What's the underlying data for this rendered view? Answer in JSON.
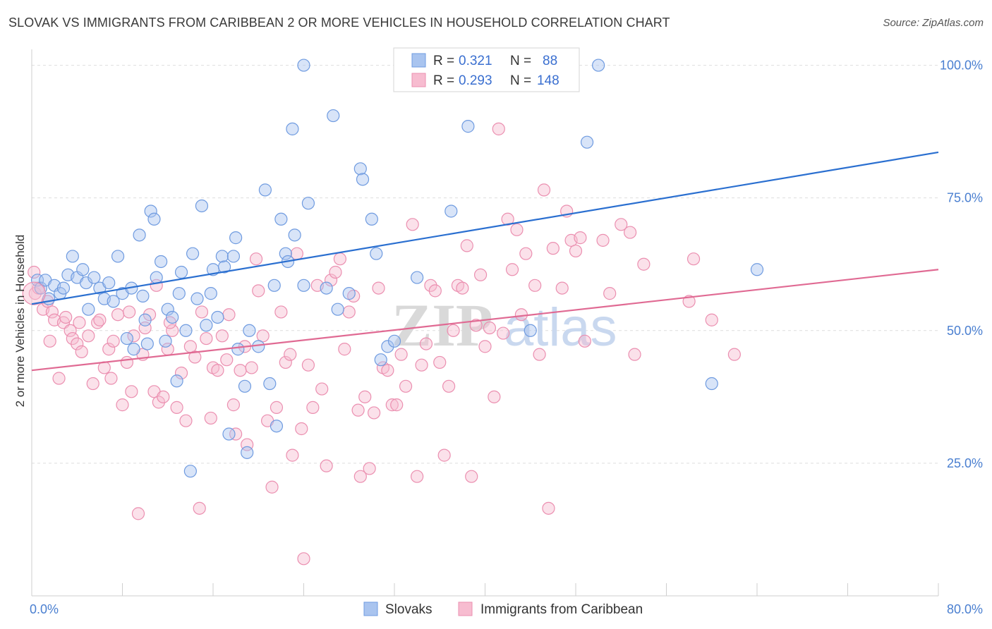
{
  "title": "SLOVAK VS IMMIGRANTS FROM CARIBBEAN 2 OR MORE VEHICLES IN HOUSEHOLD CORRELATION CHART",
  "source": "Source: ZipAtlas.com",
  "watermark": {
    "zip": "ZIP",
    "atlas": "atlas"
  },
  "chart_data": {
    "type": "scatter",
    "xlabel": "",
    "ylabel": "2 or more Vehicles in Household",
    "xlim": [
      0,
      80
    ],
    "ylim": [
      0,
      103
    ],
    "x_tick_labels": {
      "min": "0.0%",
      "max": "80.0%"
    },
    "y_ticks": [
      25,
      50,
      75,
      100
    ],
    "y_tick_labels": [
      "25.0%",
      "50.0%",
      "75.0%",
      "100.0%"
    ],
    "grid": "horizontal dashed",
    "legend_position": "top-center",
    "series": [
      {
        "name": "Slovaks",
        "color": "#a9c4ef",
        "stroke": "#6f9be0",
        "line_color": "#2a6fd0",
        "R": "0.321",
        "N": "88",
        "trend": {
          "x": [
            0,
            80
          ],
          "y": [
            55.0,
            83.6
          ]
        },
        "points": [
          [
            0.5,
            59.5
          ],
          [
            0.8,
            58.0
          ],
          [
            1.2,
            59.5
          ],
          [
            1.5,
            56.0
          ],
          [
            2.0,
            58.5
          ],
          [
            2.5,
            57.0
          ],
          [
            2.8,
            58.0
          ],
          [
            3.2,
            60.5
          ],
          [
            3.6,
            64.0
          ],
          [
            4.0,
            60.0
          ],
          [
            4.5,
            61.5
          ],
          [
            4.8,
            59.0
          ],
          [
            5.0,
            54.0
          ],
          [
            5.5,
            60.0
          ],
          [
            6.0,
            58.0
          ],
          [
            6.4,
            56.0
          ],
          [
            6.8,
            59.0
          ],
          [
            7.2,
            55.5
          ],
          [
            7.6,
            64.0
          ],
          [
            8.0,
            57.0
          ],
          [
            8.4,
            48.5
          ],
          [
            8.8,
            58.0
          ],
          [
            9.0,
            46.5
          ],
          [
            9.5,
            68.0
          ],
          [
            9.8,
            56.5
          ],
          [
            10.0,
            52.0
          ],
          [
            10.2,
            47.5
          ],
          [
            10.5,
            72.5
          ],
          [
            10.8,
            71.0
          ],
          [
            11.0,
            60.0
          ],
          [
            11.4,
            63.0
          ],
          [
            11.8,
            48.0
          ],
          [
            12.0,
            54.0
          ],
          [
            12.4,
            52.5
          ],
          [
            12.8,
            40.5
          ],
          [
            13.0,
            57.0
          ],
          [
            13.2,
            61.0
          ],
          [
            13.6,
            50.0
          ],
          [
            14.0,
            23.5
          ],
          [
            14.2,
            64.5
          ],
          [
            14.6,
            56.0
          ],
          [
            15.0,
            73.5
          ],
          [
            15.4,
            51.0
          ],
          [
            15.8,
            57.0
          ],
          [
            16.0,
            61.5
          ],
          [
            16.4,
            52.5
          ],
          [
            16.8,
            64.0
          ],
          [
            17.0,
            62.0
          ],
          [
            17.4,
            30.5
          ],
          [
            17.8,
            64.0
          ],
          [
            18.0,
            67.5
          ],
          [
            18.2,
            46.5
          ],
          [
            18.8,
            39.5
          ],
          [
            19.0,
            27.0
          ],
          [
            19.2,
            50.0
          ],
          [
            20.0,
            47.0
          ],
          [
            20.6,
            76.5
          ],
          [
            21.0,
            40.0
          ],
          [
            21.4,
            58.5
          ],
          [
            21.6,
            32.0
          ],
          [
            22.0,
            71.0
          ],
          [
            22.4,
            64.5
          ],
          [
            22.6,
            63.0
          ],
          [
            23.2,
            68.0
          ],
          [
            23.0,
            88.0
          ],
          [
            24.0,
            58.5
          ],
          [
            24.4,
            74.0
          ],
          [
            26.0,
            58.0
          ],
          [
            26.6,
            90.5
          ],
          [
            27.0,
            54.0
          ],
          [
            28.0,
            57.0
          ],
          [
            29.0,
            80.5
          ],
          [
            29.2,
            78.5
          ],
          [
            30.0,
            71.0
          ],
          [
            30.4,
            64.5
          ],
          [
            30.8,
            44.5
          ],
          [
            31.4,
            47.0
          ],
          [
            32.0,
            48.0
          ],
          [
            34.0,
            60.0
          ],
          [
            37.0,
            72.5
          ],
          [
            24.0,
            100.0
          ],
          [
            40.0,
            100.0
          ],
          [
            38.5,
            88.5
          ],
          [
            44.0,
            50.0
          ],
          [
            49.0,
            85.5
          ],
          [
            50.0,
            100.0
          ],
          [
            60.0,
            40.0
          ],
          [
            64.0,
            61.5
          ]
        ]
      },
      {
        "name": "Immigrants from Caribbean",
        "color": "#f7bcd0",
        "stroke": "#eb8fb0",
        "line_color": "#e06a93",
        "R": "0.293",
        "N": "148",
        "trend": {
          "x": [
            0,
            80
          ],
          "y": [
            42.5,
            61.5
          ]
        },
        "points": [
          [
            0.3,
            57.0
          ],
          [
            0.6,
            58.0
          ],
          [
            1.0,
            54.0
          ],
          [
            1.4,
            55.5
          ],
          [
            1.8,
            53.5
          ],
          [
            2.0,
            52.0
          ],
          [
            2.4,
            41.0
          ],
          [
            2.8,
            51.5
          ],
          [
            3.0,
            52.5
          ],
          [
            3.4,
            50.0
          ],
          [
            3.6,
            48.5
          ],
          [
            4.0,
            47.5
          ],
          [
            4.4,
            46.0
          ],
          [
            5.0,
            49.0
          ],
          [
            5.4,
            40.0
          ],
          [
            5.8,
            51.5
          ],
          [
            6.0,
            52.0
          ],
          [
            6.4,
            43.0
          ],
          [
            6.8,
            46.5
          ],
          [
            7.0,
            41.0
          ],
          [
            7.2,
            48.0
          ],
          [
            7.6,
            53.0
          ],
          [
            8.0,
            36.0
          ],
          [
            8.4,
            44.0
          ],
          [
            8.8,
            38.5
          ],
          [
            9.0,
            49.0
          ],
          [
            9.4,
            15.5
          ],
          [
            9.8,
            45.5
          ],
          [
            10.0,
            50.5
          ],
          [
            10.4,
            53.0
          ],
          [
            10.8,
            38.5
          ],
          [
            11.0,
            58.5
          ],
          [
            11.2,
            36.5
          ],
          [
            11.6,
            37.5
          ],
          [
            12.0,
            46.5
          ],
          [
            12.4,
            50.0
          ],
          [
            12.8,
            35.5
          ],
          [
            13.2,
            42.0
          ],
          [
            13.6,
            33.0
          ],
          [
            14.0,
            47.0
          ],
          [
            14.4,
            45.0
          ],
          [
            14.8,
            16.5
          ],
          [
            15.0,
            53.5
          ],
          [
            15.4,
            48.5
          ],
          [
            15.8,
            33.5
          ],
          [
            16.0,
            43.0
          ],
          [
            16.4,
            42.5
          ],
          [
            16.8,
            49.0
          ],
          [
            17.2,
            44.5
          ],
          [
            17.4,
            53.0
          ],
          [
            17.8,
            36.0
          ],
          [
            18.0,
            30.5
          ],
          [
            18.4,
            42.5
          ],
          [
            18.8,
            47.0
          ],
          [
            19.0,
            28.5
          ],
          [
            19.4,
            43.0
          ],
          [
            19.8,
            63.5
          ],
          [
            20.0,
            57.5
          ],
          [
            20.4,
            49.0
          ],
          [
            20.8,
            33.0
          ],
          [
            21.2,
            20.5
          ],
          [
            21.6,
            35.5
          ],
          [
            22.0,
            53.5
          ],
          [
            22.4,
            44.0
          ],
          [
            22.8,
            45.5
          ],
          [
            23.0,
            26.5
          ],
          [
            23.4,
            64.5
          ],
          [
            23.8,
            31.5
          ],
          [
            24.0,
            7.0
          ],
          [
            24.4,
            43.5
          ],
          [
            24.8,
            35.5
          ],
          [
            25.2,
            58.5
          ],
          [
            25.6,
            39.0
          ],
          [
            26.0,
            24.5
          ],
          [
            26.4,
            59.5
          ],
          [
            26.8,
            61.0
          ],
          [
            27.2,
            63.5
          ],
          [
            27.6,
            46.5
          ],
          [
            28.0,
            53.5
          ],
          [
            28.4,
            56.5
          ],
          [
            28.8,
            35.0
          ],
          [
            29.0,
            22.5
          ],
          [
            29.4,
            37.5
          ],
          [
            29.8,
            24.0
          ],
          [
            30.2,
            34.5
          ],
          [
            30.6,
            58.0
          ],
          [
            31.0,
            43.0
          ],
          [
            31.4,
            42.5
          ],
          [
            31.8,
            36.0
          ],
          [
            32.2,
            36.0
          ],
          [
            32.6,
            45.5
          ],
          [
            33.0,
            39.5
          ],
          [
            33.6,
            70.0
          ],
          [
            34.0,
            22.5
          ],
          [
            34.4,
            43.5
          ],
          [
            34.8,
            47.5
          ],
          [
            35.2,
            58.5
          ],
          [
            35.6,
            57.5
          ],
          [
            36.0,
            44.0
          ],
          [
            36.4,
            26.5
          ],
          [
            36.8,
            39.5
          ],
          [
            37.2,
            50.0
          ],
          [
            37.6,
            58.5
          ],
          [
            38.0,
            58.0
          ],
          [
            38.4,
            66.0
          ],
          [
            38.8,
            22.5
          ],
          [
            39.2,
            51.0
          ],
          [
            39.6,
            60.5
          ],
          [
            40.0,
            47.0
          ],
          [
            40.4,
            50.5
          ],
          [
            40.8,
            37.5
          ],
          [
            41.2,
            88.0
          ],
          [
            41.6,
            49.5
          ],
          [
            42.0,
            71.0
          ],
          [
            42.4,
            61.5
          ],
          [
            42.8,
            69.0
          ],
          [
            43.2,
            53.0
          ],
          [
            43.6,
            64.5
          ],
          [
            44.4,
            58.5
          ],
          [
            44.8,
            45.5
          ],
          [
            45.2,
            76.5
          ],
          [
            45.6,
            16.5
          ],
          [
            46.0,
            65.5
          ],
          [
            46.8,
            58.0
          ],
          [
            47.2,
            72.5
          ],
          [
            47.6,
            67.0
          ],
          [
            48.0,
            65.0
          ],
          [
            48.4,
            67.5
          ],
          [
            48.8,
            48.0
          ],
          [
            50.4,
            67.0
          ],
          [
            51.0,
            57.0
          ],
          [
            52.0,
            70.0
          ],
          [
            52.8,
            68.5
          ],
          [
            53.2,
            45.5
          ],
          [
            54.0,
            62.5
          ],
          [
            58.0,
            55.5
          ],
          [
            58.4,
            63.5
          ],
          [
            60.0,
            52.0
          ],
          [
            62.0,
            45.5
          ],
          [
            0.2,
            61.0
          ],
          [
            1.6,
            48.0
          ],
          [
            4.2,
            51.5
          ],
          [
            8.6,
            53.5
          ],
          [
            12.2,
            51.5
          ]
        ]
      }
    ]
  }
}
